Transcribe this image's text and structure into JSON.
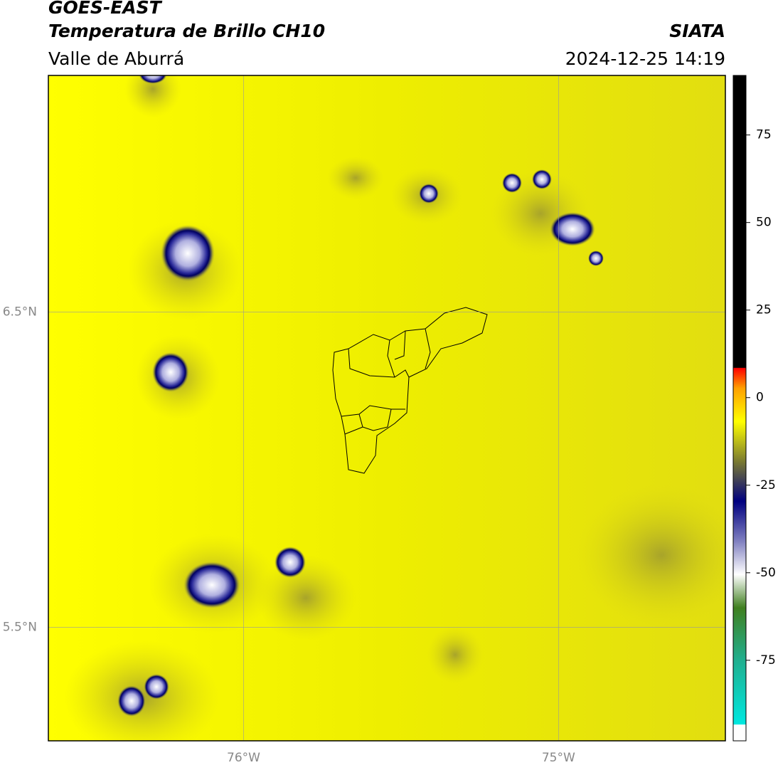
{
  "header": {
    "title": "GOES-EAST",
    "subtitle": "Temperatura de Brillo CH10",
    "region": "Valle de Aburrá",
    "source": "SIATA",
    "datetime": "2024-12-25 14:19"
  },
  "map": {
    "xlim": [
      -76.62,
      -74.47
    ],
    "ylim": [
      5.14,
      7.25
    ],
    "xticks": [
      {
        "value": -76,
        "label": "76°W"
      },
      {
        "value": -75,
        "label": "75°W"
      }
    ],
    "yticks": [
      {
        "value": 6.5,
        "label": "6.5°N"
      },
      {
        "value": 5.5,
        "label": "5.5°N"
      }
    ]
  },
  "colorbar": {
    "lim": [
      -98,
      92
    ],
    "ticks": [
      75,
      50,
      25,
      0,
      -25,
      -50,
      -75
    ]
  }
}
